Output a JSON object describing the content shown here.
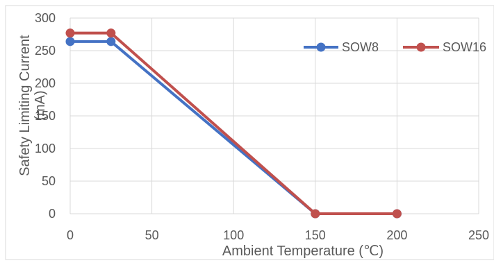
{
  "chart_data": {
    "type": "line",
    "title": "",
    "xlabel": "Ambient Temperature (℃)",
    "ylabel": "Safety Limiting Current (mA)",
    "ylabel_lines": [
      "Safety Limiting Current",
      "(mA)"
    ],
    "xlim": [
      0,
      250
    ],
    "ylim": [
      0,
      300
    ],
    "xticks": [
      0,
      50,
      100,
      150,
      200,
      250
    ],
    "yticks": [
      0,
      50,
      100,
      150,
      200,
      250,
      300
    ],
    "grid": true,
    "legend_position": "top-right",
    "series": [
      {
        "name": "SOW8",
        "color": "#4472C4",
        "x": [
          0,
          25,
          150,
          200
        ],
        "y": [
          264,
          264,
          0,
          0
        ]
      },
      {
        "name": "SOW16",
        "color": "#C0504D",
        "x": [
          0,
          25,
          150,
          200
        ],
        "y": [
          277,
          277,
          0,
          0
        ]
      }
    ]
  }
}
